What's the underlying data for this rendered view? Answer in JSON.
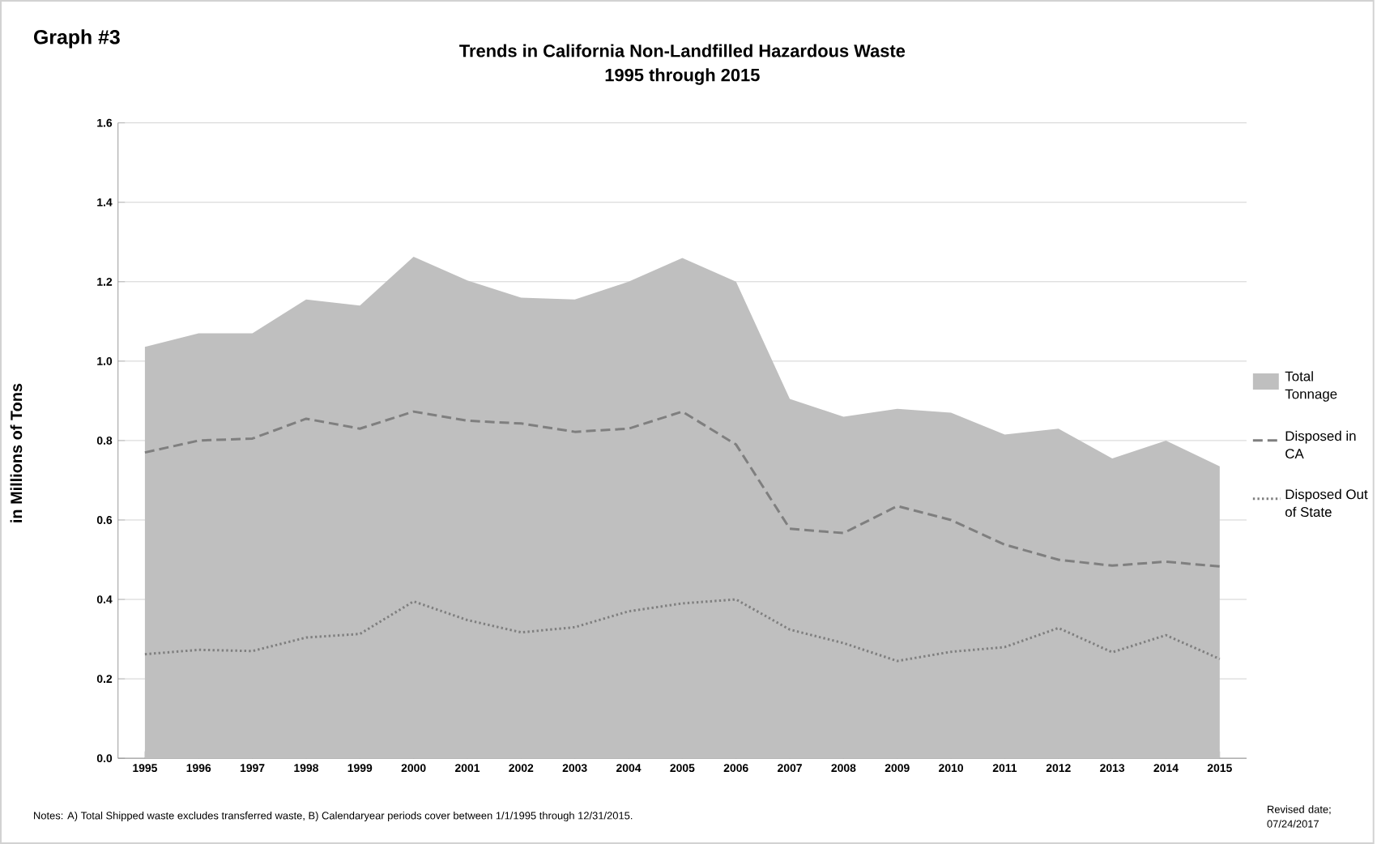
{
  "chart_data": {
    "type": "line",
    "title": "Trends in California Non-Landfilled Hazardous Waste",
    "subtitle": "1995 through 2015",
    "ylabel": "in Millions of Tons",
    "categories": [
      "1995",
      "1996",
      "1997",
      "1998",
      "1999",
      "2000",
      "2001",
      "2002",
      "2003",
      "2004",
      "2005",
      "2006",
      "2007",
      "2008",
      "2009",
      "2010",
      "2011",
      "2012",
      "2013",
      "2014",
      "2015"
    ],
    "series": [
      {
        "name": "Total Tonnage",
        "type": "area",
        "color": "#bfbfbf",
        "values": [
          1.036,
          1.07,
          1.07,
          1.155,
          1.14,
          1.263,
          1.203,
          1.16,
          1.155,
          1.2,
          1.26,
          1.2,
          0.905,
          0.86,
          0.88,
          0.87,
          0.815,
          0.83,
          0.755,
          0.8,
          0.735
        ]
      },
      {
        "name": "Disposed in CA",
        "color": "#7f7f7f",
        "line_style": "dashed",
        "values": [
          0.77,
          0.8,
          0.805,
          0.855,
          0.83,
          0.873,
          0.85,
          0.843,
          0.822,
          0.83,
          0.873,
          0.79,
          0.578,
          0.567,
          0.635,
          0.6,
          0.538,
          0.5,
          0.485,
          0.495,
          0.483
        ]
      },
      {
        "name": "Disposed Out of State",
        "color": "#7f7f7f",
        "line_style": "dotted",
        "values": [
          0.262,
          0.273,
          0.27,
          0.304,
          0.313,
          0.395,
          0.348,
          0.317,
          0.33,
          0.37,
          0.39,
          0.4,
          0.324,
          0.29,
          0.245,
          0.268,
          0.28,
          0.328,
          0.267,
          0.31,
          0.25
        ]
      }
    ],
    "ylim": [
      0,
      1.6
    ],
    "yticks": [
      {
        "value": 0,
        "label": "0.0"
      },
      0.2,
      0.4,
      0.6,
      0.8,
      {
        "value": 1,
        "label": "1.0"
      },
      1.2,
      1.4,
      1.6
    ],
    "grid": "y",
    "legend": "right",
    "marker": "none",
    "annotations": [
      "Graph #3",
      "Notes: A) Total Shipped waste excludes  transferred waste,  B) Calendaryear periods cover between 1/1/1995 through 12/31/2015.",
      "Revised date; 07/24/2017"
    ]
  }
}
